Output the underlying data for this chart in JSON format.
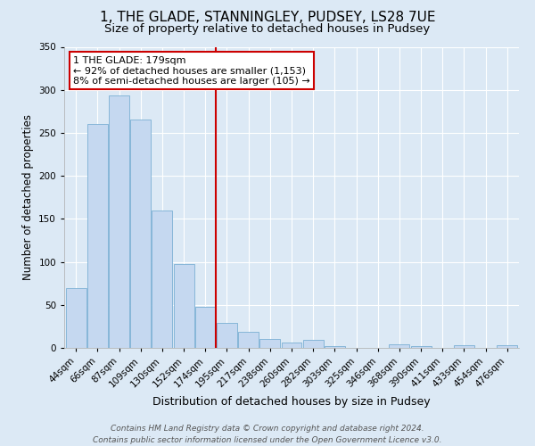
{
  "title": "1, THE GLADE, STANNINGLEY, PUDSEY, LS28 7UE",
  "subtitle": "Size of property relative to detached houses in Pudsey",
  "xlabel": "Distribution of detached houses by size in Pudsey",
  "ylabel": "Number of detached properties",
  "categories": [
    "44sqm",
    "66sqm",
    "87sqm",
    "109sqm",
    "130sqm",
    "152sqm",
    "174sqm",
    "195sqm",
    "217sqm",
    "238sqm",
    "260sqm",
    "282sqm",
    "303sqm",
    "325sqm",
    "346sqm",
    "368sqm",
    "390sqm",
    "411sqm",
    "433sqm",
    "454sqm",
    "476sqm"
  ],
  "values": [
    70,
    260,
    293,
    265,
    160,
    98,
    48,
    29,
    19,
    10,
    6,
    9,
    2,
    0,
    0,
    4,
    2,
    0,
    3,
    0,
    3
  ],
  "bar_color": "#c5d8f0",
  "bar_edge_color": "#7aafd4",
  "vline_x_idx": 6.5,
  "vline_color": "#cc0000",
  "ylim": [
    0,
    350
  ],
  "yticks": [
    0,
    50,
    100,
    150,
    200,
    250,
    300,
    350
  ],
  "annotation_title": "1 THE GLADE: 179sqm",
  "annotation_line1": "← 92% of detached houses are smaller (1,153)",
  "annotation_line2": "8% of semi-detached houses are larger (105) →",
  "annotation_box_color": "#cc0000",
  "background_color": "#dce9f5",
  "plot_bg_color": "#dce9f5",
  "footer_line1": "Contains HM Land Registry data © Crown copyright and database right 2024.",
  "footer_line2": "Contains public sector information licensed under the Open Government Licence v3.0.",
  "title_fontsize": 11,
  "subtitle_fontsize": 9.5,
  "xlabel_fontsize": 9,
  "ylabel_fontsize": 8.5,
  "tick_fontsize": 7.5,
  "ann_fontsize": 8,
  "footer_fontsize": 6.5,
  "grid_color": "#ffffff"
}
